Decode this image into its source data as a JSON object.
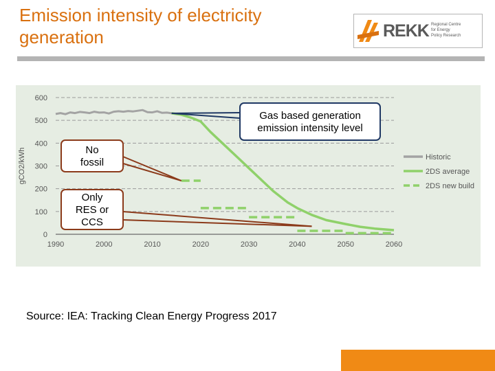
{
  "slide": {
    "title": "Emission intensity of electricity generation",
    "source": "Source: IEA: Tracking Clean Energy Progress 2017"
  },
  "logo": {
    "name": "REKK",
    "subtitle_lines": [
      "Regional Centre",
      "for Energy",
      "Policy Research"
    ]
  },
  "colors": {
    "title": "#d9700f",
    "historic": "#a3a3a3",
    "scenario_2ds": "#8fd16a",
    "callout_line": "#8b3a1a",
    "callout_border_dark": "#1f3864",
    "accent_bar": "#f08a15"
  },
  "chart_data": {
    "type": "line",
    "xlim": [
      1990,
      2060
    ],
    "ylim": [
      0,
      600
    ],
    "xticks": [
      "1990",
      "2000",
      "2010",
      "2020",
      "2030",
      "2040",
      "2050",
      "2060"
    ],
    "yticks": [
      "0",
      "100",
      "200",
      "300",
      "400",
      "500",
      "600"
    ],
    "ylabel": "gCO2/kWh",
    "legend_position": "right",
    "grid": "horizontal dashed",
    "series": [
      {
        "name": "Historic",
        "style": "solid",
        "points": [
          [
            1990,
            528
          ],
          [
            1991,
            532
          ],
          [
            1992,
            527
          ],
          [
            1993,
            535
          ],
          [
            1994,
            532
          ],
          [
            1995,
            537
          ],
          [
            1996,
            535
          ],
          [
            1997,
            532
          ],
          [
            1998,
            538
          ],
          [
            1999,
            534
          ],
          [
            2000,
            535
          ],
          [
            2001,
            530
          ],
          [
            2002,
            538
          ],
          [
            2003,
            540
          ],
          [
            2004,
            538
          ],
          [
            2005,
            541
          ],
          [
            2006,
            539
          ],
          [
            2007,
            542
          ],
          [
            2008,
            545
          ],
          [
            2009,
            536
          ],
          [
            2010,
            535
          ],
          [
            2011,
            540
          ],
          [
            2012,
            533
          ],
          [
            2013,
            534
          ],
          [
            2014,
            531
          ]
        ]
      },
      {
        "name": "2DS average",
        "style": "solid",
        "points": [
          [
            2014,
            531
          ],
          [
            2016,
            525
          ],
          [
            2018,
            512
          ],
          [
            2020,
            495
          ],
          [
            2022,
            450
          ],
          [
            2025,
            390
          ],
          [
            2028,
            330
          ],
          [
            2030,
            290
          ],
          [
            2032,
            250
          ],
          [
            2035,
            190
          ],
          [
            2038,
            140
          ],
          [
            2040,
            115
          ],
          [
            2043,
            85
          ],
          [
            2046,
            62
          ],
          [
            2050,
            45
          ],
          [
            2053,
            33
          ],
          [
            2056,
            25
          ],
          [
            2060,
            18
          ]
        ]
      },
      {
        "name": "2DS new build",
        "style": "dashed",
        "segments": [
          {
            "x": [
              2016,
              2020
            ],
            "y": 235
          },
          {
            "x": [
              2020,
              2030
            ],
            "y": 115
          },
          {
            "x": [
              2030,
              2040
            ],
            "y": 75
          },
          {
            "x": [
              2040,
              2050
            ],
            "y": 15
          },
          {
            "x": [
              2050,
              2060
            ],
            "y": 5
          }
        ]
      }
    ],
    "annotations": [
      {
        "id": "gas",
        "lines": [
          "Gas based generation",
          "emission intensity level"
        ]
      },
      {
        "id": "nofossil",
        "lines": [
          "No",
          "fossil"
        ]
      },
      {
        "id": "only_res",
        "lines": [
          "Only",
          "RES or",
          "CCS"
        ]
      }
    ]
  }
}
